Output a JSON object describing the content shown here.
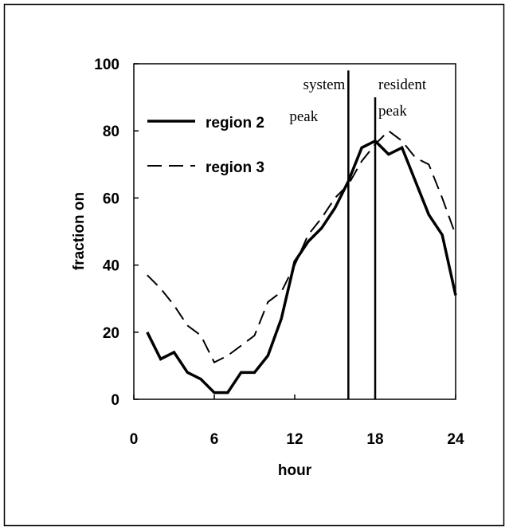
{
  "chart_data": {
    "type": "line",
    "x_label": "hour",
    "y_label": "fraction on",
    "x": [
      1,
      2,
      3,
      4,
      5,
      6,
      7,
      8,
      9,
      10,
      11,
      12,
      13,
      14,
      15,
      16,
      17,
      18,
      19,
      20,
      21,
      22,
      23,
      24
    ],
    "series": [
      {
        "name": "region 2",
        "color": "#000000",
        "dash": false,
        "values": [
          20,
          12,
          14,
          8,
          6,
          2,
          2,
          8,
          8,
          13,
          24,
          41,
          47,
          51,
          57,
          65,
          75,
          77,
          73,
          75,
          65,
          55,
          49,
          31
        ]
      },
      {
        "name": "region 3",
        "color": "#000000",
        "dash": true,
        "values": [
          37,
          33,
          28,
          22,
          19,
          11,
          13,
          16,
          19,
          29,
          32,
          40,
          49,
          54,
          60,
          64,
          71,
          76,
          80,
          77,
          72,
          70,
          60,
          49
        ]
      }
    ],
    "annotations": [
      {
        "lines": [
          "system",
          "peak"
        ],
        "x": 16,
        "y_end": 98
      },
      {
        "lines": [
          "resident",
          "peak"
        ],
        "x": 18,
        "y_end": 90
      }
    ],
    "xlim": [
      0,
      24
    ],
    "ylim": [
      0,
      100
    ],
    "xticks": [
      0,
      6,
      12,
      18,
      24
    ],
    "yticks": [
      0,
      20,
      40,
      60,
      80,
      100
    ]
  }
}
